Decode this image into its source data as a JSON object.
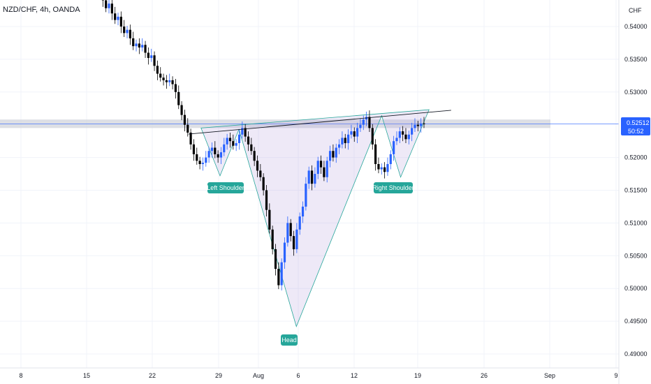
{
  "header": {
    "symbol": "NZD/CHF, 4h, OANDA"
  },
  "chart_data": {
    "type": "candlestick",
    "currency": "CHF",
    "y_ticks": [
      "0.54000",
      "0.53500",
      "0.53000",
      "0.52000",
      "0.51500",
      "0.51000",
      "0.50500",
      "0.50000",
      "0.49500",
      "0.49000"
    ],
    "x_ticks": [
      "8",
      "15",
      "22",
      "29",
      "Aug",
      "6",
      "12",
      "19",
      "26",
      "Sep",
      "9"
    ],
    "ylim": [
      0.488,
      0.544
    ],
    "grid": true,
    "last_price": "0.52512",
    "countdown": "50:52",
    "pattern_labels": {
      "left": "Left Shoulder",
      "head": "Head",
      "right": "Right Shoulder"
    },
    "neckline": {
      "from": {
        "date": "Jul 27",
        "price": 0.524
      },
      "to": {
        "date": "Aug 20",
        "price": 0.527
      }
    },
    "resistance_zone": [
      0.5245,
      0.5258
    ],
    "pattern_points": [
      {
        "date": "Jul 27",
        "price": 0.5245
      },
      {
        "date": "Jul 29",
        "price": 0.5172
      },
      {
        "date": "Jul 31",
        "price": 0.5243
      },
      {
        "date": "Aug 5",
        "price": 0.4942
      },
      {
        "date": "Aug 14",
        "price": 0.5264
      },
      {
        "date": "Aug 16",
        "price": 0.517
      },
      {
        "date": "Aug 19",
        "price": 0.5273
      }
    ],
    "colors": {
      "up": "#2962ff",
      "down": "#000000",
      "accent": "#26a69a",
      "price": "#2962ff"
    },
    "closes": [
      0.5452,
      0.544,
      0.5428,
      0.5435,
      0.542,
      0.541,
      0.5415,
      0.54,
      0.539,
      0.5395,
      0.5382,
      0.537,
      0.5374,
      0.5368,
      0.5372,
      0.536,
      0.5352,
      0.5356,
      0.534,
      0.5328,
      0.5322,
      0.5318,
      0.5315,
      0.5318,
      0.5312,
      0.53,
      0.528,
      0.5265,
      0.525,
      0.5238,
      0.522,
      0.5205,
      0.5195,
      0.519,
      0.5192,
      0.52,
      0.521,
      0.5215,
      0.5205,
      0.52,
      0.5208,
      0.522,
      0.523,
      0.5225,
      0.5218,
      0.5222,
      0.5235,
      0.5245,
      0.5232,
      0.522,
      0.521,
      0.5195,
      0.518,
      0.517,
      0.515,
      0.512,
      0.509,
      0.506,
      0.503,
      0.5005,
      0.504,
      0.507,
      0.51,
      0.508,
      0.506,
      0.509,
      0.511,
      0.5125,
      0.516,
      0.518,
      0.516,
      0.5175,
      0.5195,
      0.5185,
      0.517,
      0.5195,
      0.521,
      0.52,
      0.5215,
      0.522,
      0.523,
      0.5222,
      0.5235,
      0.524,
      0.5232,
      0.5245,
      0.525,
      0.5258,
      0.5262,
      0.5245,
      0.522,
      0.519,
      0.5182,
      0.5185,
      0.5178,
      0.519,
      0.5205,
      0.5225,
      0.523,
      0.524,
      0.5235,
      0.5228,
      0.5235,
      0.5245,
      0.525,
      0.5248,
      0.5252,
      0.5251
    ]
  }
}
